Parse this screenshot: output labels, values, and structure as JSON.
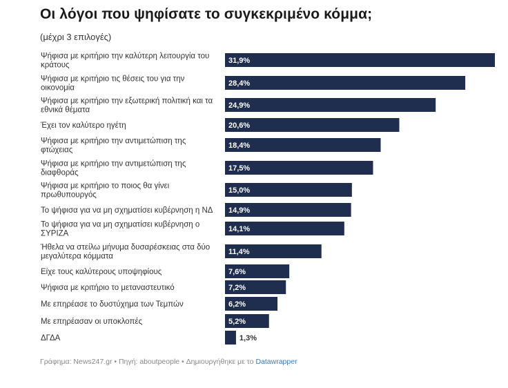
{
  "header": {
    "title": "Οι λόγοι που ψηφίσατε το συγκεκριμένο κόμμα;",
    "subtitle": "(μέχρι 3 επιλογές)"
  },
  "footer": {
    "text": "Γράφημα: News247.gr • Πηγή: aboutpeople • Δημιουργήθηκε με το ",
    "link_label": "Datawrapper"
  },
  "colors": {
    "bar": "#1f2d4e",
    "label_inside": "#ffffff",
    "label_outside": "#333333"
  },
  "chart_data": {
    "type": "bar",
    "orientation": "horizontal",
    "title": "Οι λόγοι που ψηφίσατε το συγκεκριμένο κόμμα;",
    "subtitle": "(μέχρι 3 επιλογές)",
    "categories": [
      [
        "Ψήφισα με κριτήριο την καλύτερη λειτουργία του",
        "κράτους"
      ],
      [
        "Ψήφισα με κριτήριο τις θέσεις του για την",
        "οικονομία"
      ],
      [
        "Ψήφισα με κριτήριο την εξωτερική πολιτική και τα",
        "εθνικά θέματα"
      ],
      [
        "Έχει τον καλύτερο ηγέτη"
      ],
      [
        "Ψήφισα με κριτήριο την αντιμετώπιση της",
        "φτώχειας"
      ],
      [
        "Ψήφισα με κριτήριο την αντιμετώπιση της",
        "διαφθοράς"
      ],
      [
        "Ψήφισα με κριτήριο το ποιος θα γίνει",
        "πρωθυπουργός"
      ],
      [
        "Το ψήφισα για να μη σχηματίσει κυβέρνηση η ΝΔ"
      ],
      [
        "Το ψήφισα για να μη σχηματίσει κυβέρνηση ο",
        "ΣΥΡΙΖΑ"
      ],
      [
        "Ήθελα να στείλω μήνυμα δυσαρέσκειας στα δύο",
        "μεγαλύτερα κόμματα"
      ],
      [
        "Είχε τους καλύτερους υποψηφίους"
      ],
      [
        "Ψήφισα με κριτήριο το μεταναστευτικό"
      ],
      [
        "Με επηρέασε το δυστύχημα των Τεμπών"
      ],
      [
        "Με επηρέασαν οι υποκλοπές"
      ],
      [
        "ΔΓΔΑ"
      ]
    ],
    "values": [
      31.9,
      28.4,
      24.9,
      20.6,
      18.4,
      17.5,
      15.0,
      14.9,
      14.1,
      11.4,
      7.6,
      7.2,
      6.2,
      5.2,
      1.3
    ],
    "value_labels": [
      "31,9%",
      "28,4%",
      "24,9%",
      "20,6%",
      "18,4%",
      "17,5%",
      "15,0%",
      "14,9%",
      "14,1%",
      "11,4%",
      "7,6%",
      "7,2%",
      "6,2%",
      "5,2%",
      "1,3%"
    ],
    "xlim": [
      0,
      31.9
    ]
  }
}
